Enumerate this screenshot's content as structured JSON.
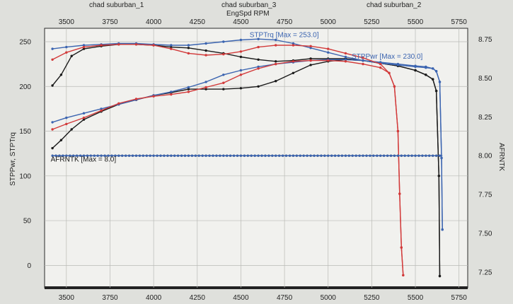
{
  "chart_data": {
    "type": "line",
    "run_labels": [
      "chad suburban_1",
      "chad suburban_3",
      "chad suburban_2"
    ],
    "xlabel": "EngSpd RPM",
    "ylabel_left": "STPPwr, STPTrq",
    "ylabel_right": "AFRNTK",
    "xlim": [
      3375,
      5800
    ],
    "ylim_left": [
      -25,
      265
    ],
    "ylim_right": [
      7.15,
      8.82
    ],
    "x_ticks": [
      "3500",
      "3750",
      "4000",
      "4250",
      "4500",
      "4750",
      "5000",
      "5250",
      "5500",
      "5750"
    ],
    "y_ticks_left": [
      "0",
      "50",
      "100",
      "150",
      "200",
      "250"
    ],
    "y_ticks_right": [
      "7.25",
      "7.50",
      "7.75",
      "8.00",
      "8.25",
      "8.50",
      "8.75"
    ],
    "grid": true,
    "annotations": [
      {
        "text": "STPTrq [Max = 253.0]",
        "x": 4550,
        "y": 255,
        "color": "#3b64b0"
      },
      {
        "text": "STPPwr [Max = 230.0]",
        "x": 5135,
        "y": 231,
        "color": "#3b64b0"
      },
      {
        "text": "AFRNTK [Max = 8.0]",
        "x": 3410,
        "y": 116,
        "color": "#1a1a1a"
      }
    ],
    "series": [
      {
        "run": "chad suburban_1",
        "quantity": "STPTrq",
        "color": "#1a1a1a",
        "axis": "left",
        "x": [
          3420,
          3470,
          3530,
          3600,
          3700,
          3800,
          3900,
          4000,
          4100,
          4200,
          4300,
          4400,
          4500,
          4600,
          4700,
          4800,
          4900,
          5000,
          5100,
          5200,
          5300,
          5400,
          5500,
          5560,
          5600,
          5620,
          5635,
          5640
        ],
        "y": [
          201,
          213,
          234,
          242,
          245,
          247,
          247,
          246,
          244,
          243,
          240,
          237,
          233,
          230,
          228,
          229,
          231,
          231,
          231,
          229,
          226,
          223,
          218,
          213,
          208,
          195,
          100,
          -12
        ]
      },
      {
        "run": "chad suburban_1",
        "quantity": "STPPwr",
        "color": "#1a1a1a",
        "axis": "left",
        "x": [
          3420,
          3470,
          3530,
          3600,
          3700,
          3800,
          3900,
          4000,
          4100,
          4200,
          4300,
          4400,
          4500,
          4600,
          4700,
          4800,
          4900,
          5000,
          5100,
          5200,
          5300,
          5400,
          5500,
          5560,
          5600,
          5620,
          5635,
          5640
        ],
        "y": [
          131,
          140,
          152,
          163,
          172,
          180,
          185,
          190,
          193,
          197,
          197,
          197,
          198,
          200,
          206,
          215,
          224,
          228,
          230,
          229,
          226,
          223,
          218,
          213,
          208,
          195,
          100,
          -12
        ]
      },
      {
        "run": "chad suburban_3",
        "quantity": "STPTrq",
        "color": "#3b64b0",
        "axis": "left",
        "x": [
          3420,
          3500,
          3600,
          3700,
          3800,
          3900,
          4000,
          4100,
          4200,
          4300,
          4400,
          4500,
          4600,
          4700,
          4800,
          4900,
          5000,
          5100,
          5200,
          5300,
          5400,
          5500,
          5560,
          5600,
          5620,
          5640,
          5650,
          5655
        ],
        "y": [
          242,
          244,
          246,
          247,
          248,
          248,
          247,
          246,
          246,
          248,
          250,
          252,
          253,
          252,
          248,
          243,
          238,
          233,
          229,
          226,
          224,
          222,
          221,
          220,
          217,
          205,
          120,
          40
        ]
      },
      {
        "run": "chad suburban_3",
        "quantity": "STPPwr",
        "color": "#3b64b0",
        "axis": "left",
        "x": [
          3420,
          3500,
          3600,
          3700,
          3800,
          3900,
          4000,
          4100,
          4200,
          4300,
          4400,
          4500,
          4600,
          4700,
          4800,
          4900,
          5000,
          5100,
          5200,
          5300,
          5400,
          5500,
          5560,
          5600,
          5620,
          5640,
          5650,
          5655
        ],
        "y": [
          160,
          165,
          170,
          175,
          180,
          185,
          190,
          194,
          199,
          205,
          213,
          218,
          222,
          225,
          227,
          229,
          230,
          230,
          229,
          227,
          225,
          223,
          222,
          220,
          217,
          205,
          120,
          40
        ]
      },
      {
        "run": "chad suburban_2",
        "quantity": "STPTrq",
        "color": "#d23a3a",
        "axis": "left",
        "x": [
          3420,
          3500,
          3600,
          3700,
          3800,
          3900,
          4000,
          4100,
          4200,
          4300,
          4400,
          4500,
          4600,
          4700,
          4800,
          4900,
          5000,
          5100,
          5200,
          5300,
          5350,
          5380,
          5400,
          5410,
          5420,
          5430
        ],
        "y": [
          230,
          238,
          244,
          246,
          247,
          247,
          246,
          242,
          237,
          235,
          236,
          239,
          244,
          246,
          246,
          245,
          242,
          237,
          232,
          225,
          215,
          200,
          150,
          80,
          20,
          -11
        ]
      },
      {
        "run": "chad suburban_2",
        "quantity": "STPPwr",
        "color": "#d23a3a",
        "axis": "left",
        "x": [
          3420,
          3500,
          3600,
          3700,
          3800,
          3900,
          4000,
          4100,
          4200,
          4300,
          4400,
          4500,
          4600,
          4700,
          4800,
          4900,
          5000,
          5100,
          5200,
          5300,
          5350,
          5380,
          5400,
          5410,
          5420,
          5430
        ],
        "y": [
          152,
          158,
          165,
          173,
          181,
          186,
          189,
          191,
          194,
          199,
          204,
          213,
          220,
          225,
          228,
          229,
          229,
          228,
          225,
          221,
          215,
          200,
          150,
          80,
          20,
          -11
        ]
      },
      {
        "run": "chad suburban_1",
        "quantity": "AFRNTK",
        "color": "#1a1a1a",
        "axis": "right",
        "x": [
          3420,
          5640
        ],
        "y": [
          8.0,
          8.0
        ]
      },
      {
        "run": "chad suburban_3",
        "quantity": "AFRNTK",
        "color": "#3b64b0",
        "axis": "right",
        "x": [
          3420,
          5655
        ],
        "y": [
          8.0,
          8.0
        ]
      }
    ]
  }
}
